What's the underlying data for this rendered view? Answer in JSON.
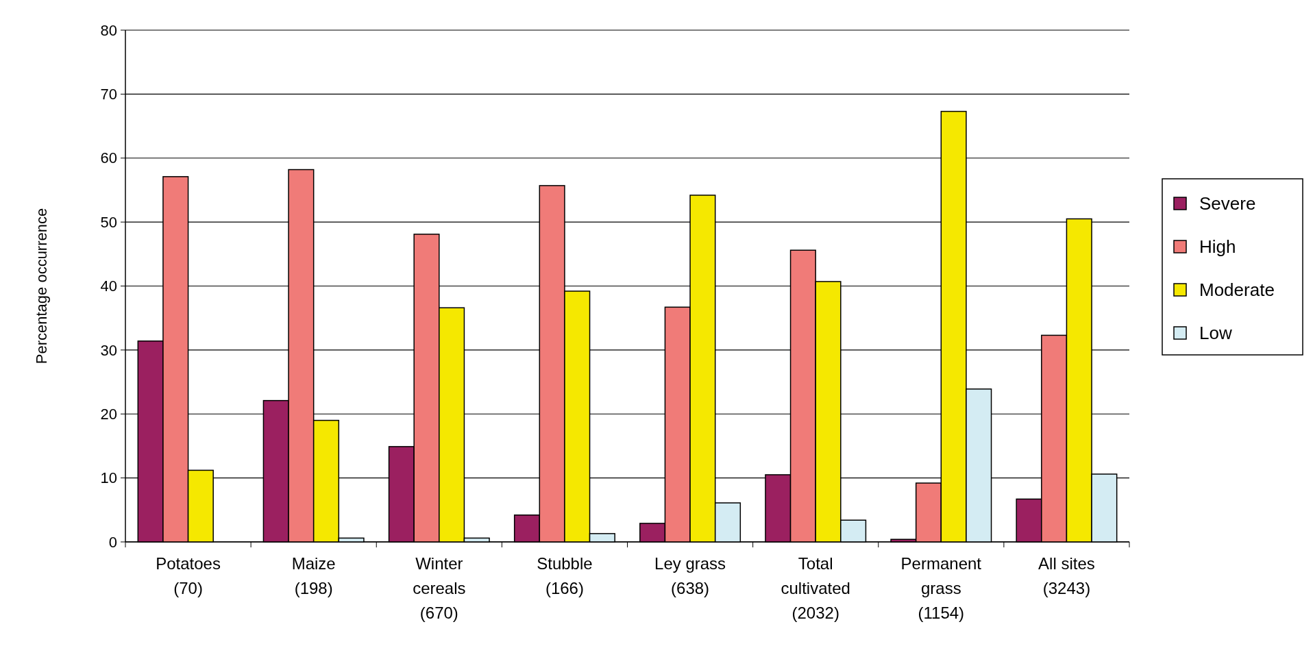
{
  "chart_data": {
    "type": "bar",
    "ylabel": "Percentage occurrence",
    "categories": [
      "Potatoes (70)",
      "Maize (198)",
      "Winter cereals (670)",
      "Stubble (166)",
      "Ley grass (638)",
      "Total cultivated (2032)",
      "Permanent grass (1154)",
      "All sites (3243)"
    ],
    "series": [
      {
        "name": "Severe",
        "color": "#9b2060",
        "values": [
          31.4,
          22.1,
          14.9,
          4.2,
          2.9,
          10.5,
          0.4,
          6.7
        ]
      },
      {
        "name": "High",
        "color": "#f07b78",
        "values": [
          57.1,
          58.2,
          48.1,
          55.7,
          36.7,
          45.6,
          9.2,
          32.3
        ]
      },
      {
        "name": "Moderate",
        "color": "#f5e800",
        "values": [
          11.2,
          19.0,
          36.6,
          39.2,
          54.2,
          40.7,
          67.3,
          50.5
        ]
      },
      {
        "name": "Low",
        "color": "#d4ecf3",
        "values": [
          null,
          0.6,
          0.6,
          1.3,
          6.1,
          3.4,
          23.9,
          10.6
        ]
      }
    ],
    "ylim": [
      0,
      80
    ],
    "yticks": [
      0,
      10,
      20,
      30,
      40,
      50,
      60,
      70,
      80
    ],
    "grid": "y",
    "legend": "right"
  }
}
